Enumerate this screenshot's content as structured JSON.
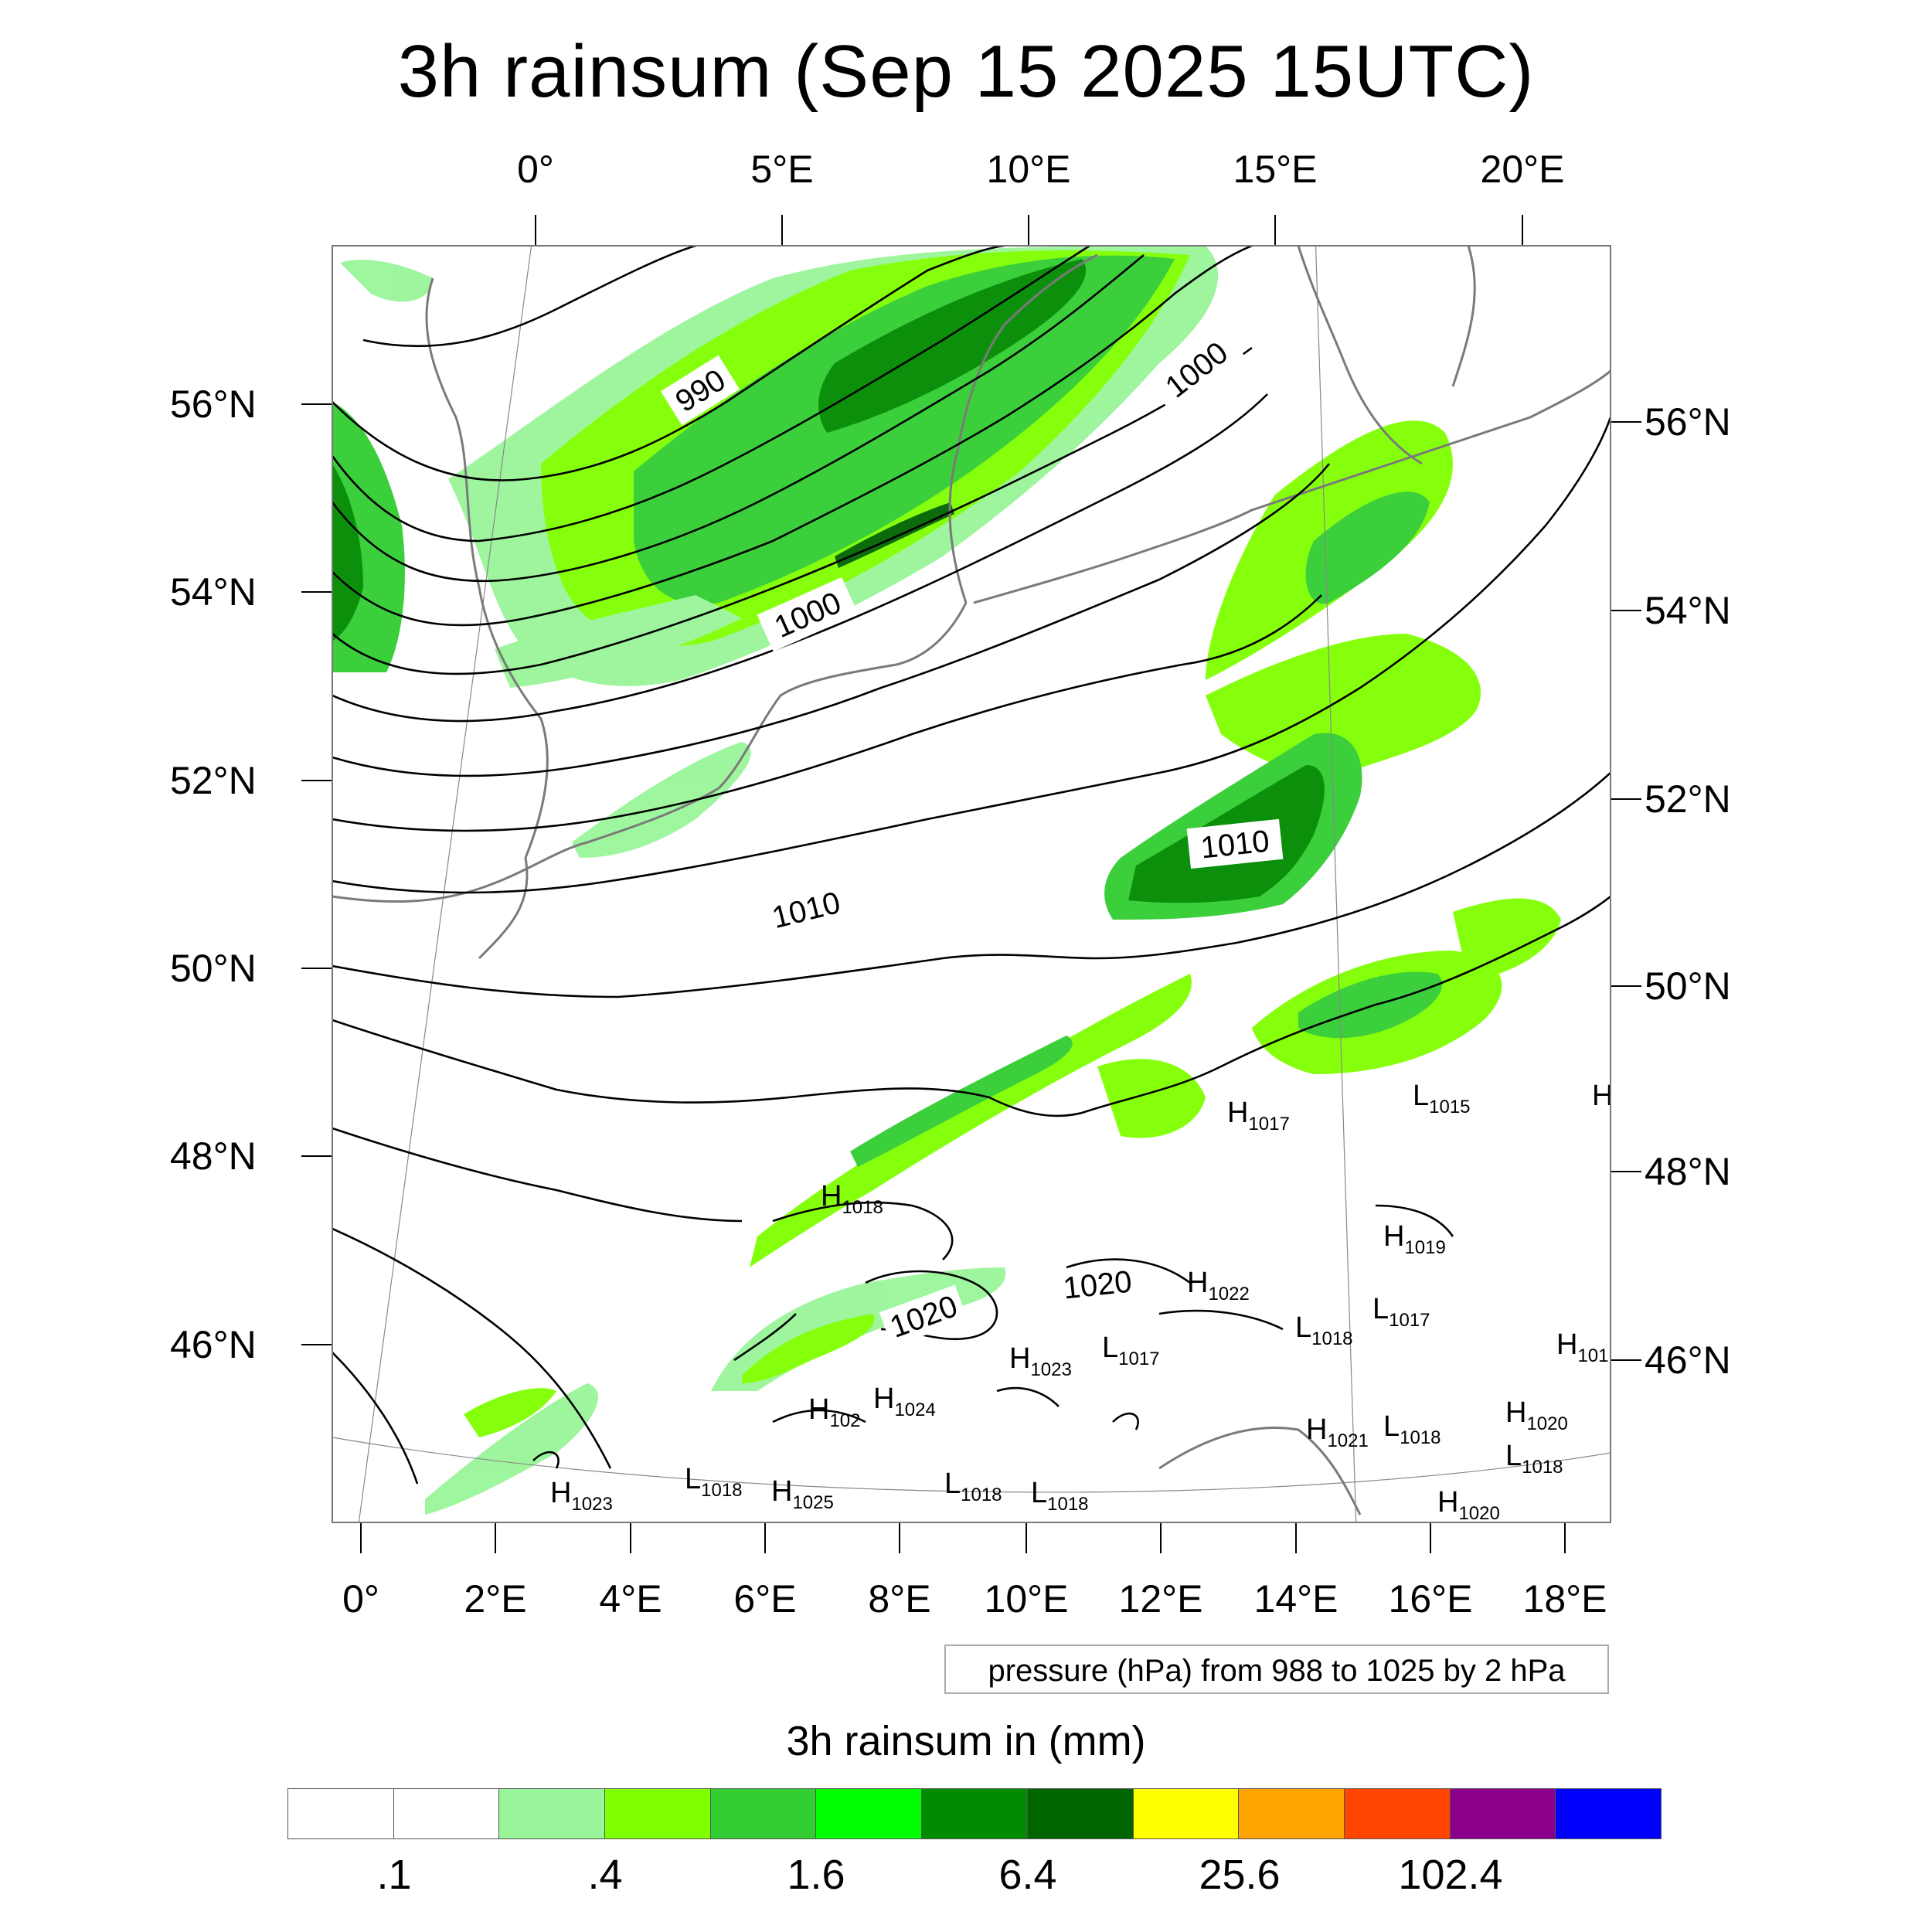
{
  "title": "3h rainsum (Sep 15 2025 15UTC)",
  "top_lon_labels": [
    "0°",
    "5°E",
    "10°E",
    "15°E",
    "20°E"
  ],
  "bottom_lon_labels": [
    "0°",
    "2°E",
    "4°E",
    "6°E",
    "8°E",
    "10°E",
    "12°E",
    "14°E",
    "16°E",
    "18°E"
  ],
  "left_lat_labels": [
    "56°N",
    "54°N",
    "52°N",
    "50°N",
    "48°N",
    "46°N"
  ],
  "right_lat_labels": [
    "56°N",
    "54°N",
    "52°N",
    "50°N",
    "48°N",
    "46°N"
  ],
  "contour_info": "pressure (hPa) from 988 to 1025 by 2 hPa",
  "contour_labels": [
    "990",
    "1000",
    "1000",
    "1010",
    "1010",
    "1020",
    "1020"
  ],
  "pressure_centers": [
    {
      "type": "H",
      "value": "1017"
    },
    {
      "type": "L",
      "value": "1015"
    },
    {
      "type": "H",
      "value": ""
    },
    {
      "type": "H",
      "value": "1018"
    },
    {
      "type": "H",
      "value": "1019"
    },
    {
      "type": "H",
      "value": "1022"
    },
    {
      "type": "L",
      "value": "1017"
    },
    {
      "type": "L",
      "value": "1018"
    },
    {
      "type": "H",
      "value": "1023"
    },
    {
      "type": "L",
      "value": "1017"
    },
    {
      "type": "H",
      "value": "101"
    },
    {
      "type": "H",
      "value": "102"
    },
    {
      "type": "H",
      "value": "1024"
    },
    {
      "type": "H",
      "value": "1021"
    },
    {
      "type": "L",
      "value": "1018"
    },
    {
      "type": "H",
      "value": "1020"
    },
    {
      "type": "L",
      "value": "1018"
    },
    {
      "type": "H",
      "value": "1023"
    },
    {
      "type": "L",
      "value": "1018"
    },
    {
      "type": "H",
      "value": "1025"
    },
    {
      "type": "L",
      "value": "1018"
    },
    {
      "type": "L",
      "value": "1018"
    },
    {
      "type": "H",
      "value": "1020"
    }
  ],
  "colorbar": {
    "title": "3h rainsum in (mm)",
    "colors": [
      "#ffffff",
      "#ffffff",
      "#99f599",
      "#80ff00",
      "#32cd32",
      "#00ff00",
      "#008b00",
      "#006400",
      "#ffff00",
      "#ffa500",
      "#ff4500",
      "#8b008b",
      "#0000ff"
    ],
    "labels": [
      ".1",
      ".4",
      "1.6",
      "6.4",
      "25.6",
      "102.4"
    ]
  },
  "rain_colors": {
    "light": "#99f599",
    "lime": "#80ff00",
    "mid": "#32cd32",
    "bright": "#00ff00",
    "dark": "#008b00",
    "darkest": "#006400"
  }
}
